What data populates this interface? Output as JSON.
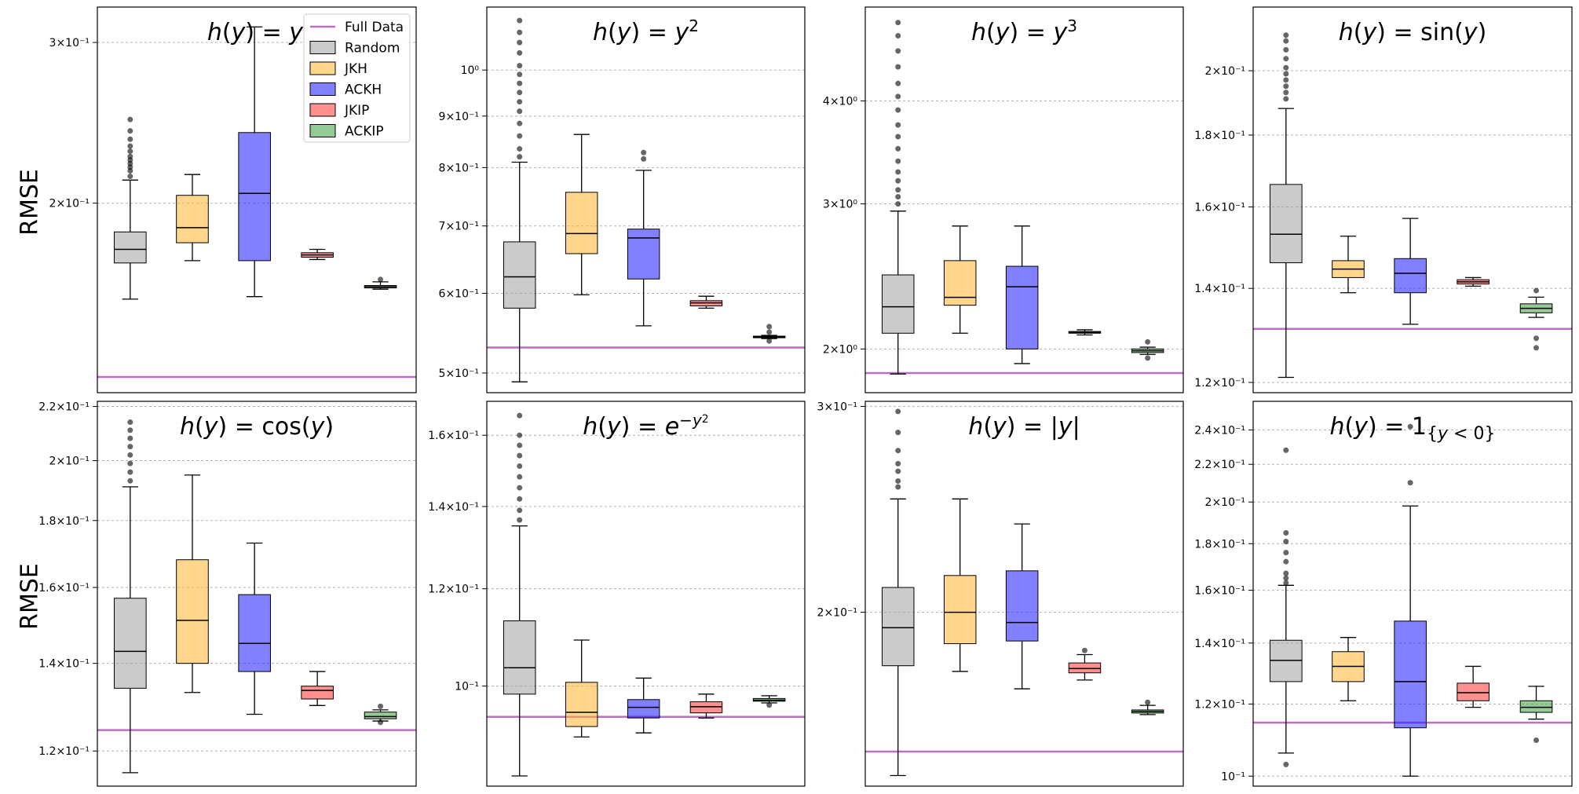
{
  "figure": {
    "row_ylabels": [
      "RMSE",
      "RMSE"
    ]
  },
  "legend": {
    "entries": [
      "Full Data",
      "Random",
      "JKH",
      "ACKH",
      "JKIP",
      "ACKIP"
    ]
  },
  "colors": {
    "Full Data": "#bf6ec8",
    "Random": "#a0a0a0",
    "JKH": "#ffb52e",
    "ACKH": "#1a1aff",
    "JKIP": "#ff3535",
    "ACKIP": "#3c9f3c"
  },
  "chart_data": [
    {
      "type": "box",
      "title": "h(y) = y",
      "title_parts": [
        {
          "t": "h",
          "i": true
        },
        {
          "t": "(",
          "i": false
        },
        {
          "t": "y",
          "i": true
        },
        {
          "t": ") = ",
          "i": false
        },
        {
          "t": "y",
          "i": true
        }
      ],
      "ylabel": "RMSE",
      "yscale": "log",
      "ylim": [
        0.124,
        0.328
      ],
      "yticks": [
        {
          "v": 0.2,
          "label": "2×10⁻¹"
        },
        {
          "v": 0.3,
          "label": "3×10⁻¹"
        }
      ],
      "full_data": 0.129,
      "legend": true,
      "categories": [
        "Random",
        "JKH",
        "ACKH",
        "JKIP",
        "ACKIP"
      ],
      "boxes": [
        {
          "name": "Random",
          "whislo": 0.157,
          "q1": 0.172,
          "med": 0.178,
          "q3": 0.186,
          "whishi": 0.212,
          "fliers": [
            0.214,
            0.217,
            0.219,
            0.221,
            0.223,
            0.225,
            0.228,
            0.231,
            0.235,
            0.24,
            0.247
          ]
        },
        {
          "name": "JKH",
          "whislo": 0.173,
          "q1": 0.181,
          "med": 0.188,
          "q3": 0.204,
          "whishi": 0.215,
          "fliers": []
        },
        {
          "name": "ACKH",
          "whislo": 0.158,
          "q1": 0.173,
          "med": 0.205,
          "q3": 0.239,
          "whishi": 0.312,
          "fliers": []
        },
        {
          "name": "JKIP",
          "whislo": 0.1735,
          "q1": 0.1745,
          "med": 0.1755,
          "q3": 0.1765,
          "whishi": 0.178,
          "fliers": []
        },
        {
          "name": "ACKIP",
          "whislo": 0.161,
          "q1": 0.1615,
          "med": 0.162,
          "q3": 0.1625,
          "whishi": 0.164,
          "fliers": [
            0.165
          ]
        }
      ]
    },
    {
      "type": "box",
      "title": "h(y) = y^2",
      "title_parts": [
        {
          "t": "h",
          "i": true
        },
        {
          "t": "(",
          "i": false
        },
        {
          "t": "y",
          "i": true
        },
        {
          "t": ") = ",
          "i": false
        },
        {
          "t": "y",
          "i": true
        },
        {
          "t": "2",
          "i": false,
          "sup": true
        }
      ],
      "yscale": "log",
      "ylim": [
        0.478,
        1.155
      ],
      "yticks": [
        {
          "v": 0.5,
          "label": "5×10⁻¹"
        },
        {
          "v": 0.6,
          "label": "6×10⁻¹"
        },
        {
          "v": 0.7,
          "label": "7×10⁻¹"
        },
        {
          "v": 0.8,
          "label": "8×10⁻¹"
        },
        {
          "v": 0.9,
          "label": "9×10⁻¹"
        },
        {
          "v": 1.0,
          "label": "10⁰"
        }
      ],
      "full_data": 0.53,
      "categories": [
        "Random",
        "JKH",
        "ACKH",
        "JKIP",
        "ACKIP"
      ],
      "boxes": [
        {
          "name": "Random",
          "whislo": 0.49,
          "q1": 0.58,
          "med": 0.623,
          "q3": 0.675,
          "whishi": 0.81,
          "fliers": [
            0.82,
            0.835,
            0.86,
            0.885,
            0.91,
            0.93,
            0.95,
            0.97,
            0.99,
            1.01,
            1.04,
            1.065,
            1.09,
            1.12
          ]
        },
        {
          "name": "JKH",
          "whislo": 0.598,
          "q1": 0.657,
          "med": 0.688,
          "q3": 0.756,
          "whishi": 0.863,
          "fliers": []
        },
        {
          "name": "ACKH",
          "whislo": 0.557,
          "q1": 0.62,
          "med": 0.681,
          "q3": 0.695,
          "whishi": 0.795,
          "fliers": [
            0.816,
            0.828
          ]
        },
        {
          "name": "JKIP",
          "whislo": 0.58,
          "q1": 0.583,
          "med": 0.587,
          "q3": 0.59,
          "whishi": 0.596,
          "fliers": []
        },
        {
          "name": "ACKIP",
          "whislo": 0.541,
          "q1": 0.542,
          "med": 0.543,
          "q3": 0.544,
          "whishi": 0.545,
          "fliers": [
            0.538,
            0.549,
            0.556
          ]
        }
      ]
    },
    {
      "type": "box",
      "title": "h(y) = y^3",
      "title_parts": [
        {
          "t": "h",
          "i": true
        },
        {
          "t": "(",
          "i": false
        },
        {
          "t": "y",
          "i": true
        },
        {
          "t": ") = ",
          "i": false
        },
        {
          "t": "y",
          "i": true
        },
        {
          "t": "3",
          "i": false,
          "sup": true
        }
      ],
      "yscale": "log",
      "ylim": [
        1.77,
        5.2
      ],
      "yticks": [
        {
          "v": 2.0,
          "label": "2×10⁰"
        },
        {
          "v": 3.0,
          "label": "3×10⁰"
        },
        {
          "v": 4.0,
          "label": "4×10⁰"
        }
      ],
      "full_data": 1.87,
      "categories": [
        "Random",
        "JKH",
        "ACKH",
        "JKIP",
        "ACKIP"
      ],
      "boxes": [
        {
          "name": "Random",
          "whislo": 1.865,
          "q1": 2.09,
          "med": 2.25,
          "q3": 2.46,
          "whishi": 2.94,
          "fliers": [
            3.0,
            3.06,
            3.12,
            3.2,
            3.28,
            3.38,
            3.5,
            3.62,
            3.74,
            3.9,
            4.05,
            4.2,
            4.4,
            4.6,
            4.8,
            4.98
          ]
        },
        {
          "name": "JKH",
          "whislo": 2.09,
          "q1": 2.26,
          "med": 2.31,
          "q3": 2.56,
          "whishi": 2.82,
          "fliers": []
        },
        {
          "name": "ACKH",
          "whislo": 1.92,
          "q1": 2.0,
          "med": 2.38,
          "q3": 2.52,
          "whishi": 2.82,
          "fliers": []
        },
        {
          "name": "JKIP",
          "whislo": 2.08,
          "q1": 2.09,
          "med": 2.095,
          "q3": 2.1,
          "whishi": 2.11,
          "fliers": []
        },
        {
          "name": "ACKIP",
          "whislo": 1.97,
          "q1": 1.98,
          "med": 1.99,
          "q3": 2.0,
          "whishi": 2.01,
          "fliers": [
            1.95,
            2.04
          ]
        }
      ]
    },
    {
      "type": "box",
      "title": "h(y) = sin(y)",
      "title_parts": [
        {
          "t": "h",
          "i": true
        },
        {
          "t": "(",
          "i": false
        },
        {
          "t": "y",
          "i": true
        },
        {
          "t": ") = sin(",
          "i": false
        },
        {
          "t": "y",
          "i": true
        },
        {
          "t": ")",
          "i": false
        }
      ],
      "yscale": "log",
      "ylim": [
        0.118,
        0.222
      ],
      "yticks": [
        {
          "v": 0.12,
          "label": "1.2×10⁻¹"
        },
        {
          "v": 0.14,
          "label": "1.4×10⁻¹"
        },
        {
          "v": 0.16,
          "label": "1.6×10⁻¹"
        },
        {
          "v": 0.18,
          "label": "1.8×10⁻¹"
        },
        {
          "v": 0.2,
          "label": "2×10⁻¹"
        }
      ],
      "full_data": 0.131,
      "categories": [
        "Random",
        "JKH",
        "ACKH",
        "JKIP",
        "ACKIP"
      ],
      "boxes": [
        {
          "name": "Random",
          "whislo": 0.121,
          "q1": 0.146,
          "med": 0.153,
          "q3": 0.166,
          "whishi": 0.188,
          "fliers": [
            0.191,
            0.193,
            0.195,
            0.197,
            0.199,
            0.201,
            0.204,
            0.207,
            0.21,
            0.212
          ]
        },
        {
          "name": "JKH",
          "whislo": 0.139,
          "q1": 0.1425,
          "med": 0.1445,
          "q3": 0.1465,
          "whishi": 0.1525,
          "fliers": []
        },
        {
          "name": "ACKH",
          "whislo": 0.132,
          "q1": 0.139,
          "med": 0.1435,
          "q3": 0.147,
          "whishi": 0.157,
          "fliers": []
        },
        {
          "name": "JKIP",
          "whislo": 0.1405,
          "q1": 0.141,
          "med": 0.1415,
          "q3": 0.142,
          "whishi": 0.1425,
          "fliers": []
        },
        {
          "name": "ACKIP",
          "whislo": 0.1335,
          "q1": 0.1345,
          "med": 0.1355,
          "q3": 0.1365,
          "whishi": 0.138,
          "fliers": [
            0.129,
            0.127,
            0.1395
          ]
        }
      ]
    },
    {
      "type": "box",
      "title": "h(y) = cos(y)",
      "title_parts": [
        {
          "t": "h",
          "i": true
        },
        {
          "t": "(",
          "i": false
        },
        {
          "t": "y",
          "i": true
        },
        {
          "t": ") = cos(",
          "i": false
        },
        {
          "t": "y",
          "i": true
        },
        {
          "t": ")",
          "i": false
        }
      ],
      "ylabel": "RMSE",
      "yscale": "log",
      "ylim": [
        0.1128,
        0.222
      ],
      "yticks": [
        {
          "v": 0.12,
          "label": "1.2×10⁻¹"
        },
        {
          "v": 0.14,
          "label": "1.4×10⁻¹"
        },
        {
          "v": 0.16,
          "label": "1.6×10⁻¹"
        },
        {
          "v": 0.18,
          "label": "1.8×10⁻¹"
        },
        {
          "v": 0.2,
          "label": "2×10⁻¹"
        },
        {
          "v": 0.22,
          "label": "2.2×10⁻¹"
        }
      ],
      "full_data": 0.1245,
      "categories": [
        "Random",
        "JKH",
        "ACKH",
        "JKIP",
        "ACKIP"
      ],
      "boxes": [
        {
          "name": "Random",
          "whislo": 0.1155,
          "q1": 0.134,
          "med": 0.143,
          "q3": 0.157,
          "whishi": 0.191,
          "fliers": [
            0.193,
            0.196,
            0.199,
            0.202,
            0.205,
            0.208,
            0.211,
            0.214
          ]
        },
        {
          "name": "JKH",
          "whislo": 0.133,
          "q1": 0.14,
          "med": 0.151,
          "q3": 0.168,
          "whishi": 0.195,
          "fliers": []
        },
        {
          "name": "ACKH",
          "whislo": 0.128,
          "q1": 0.138,
          "med": 0.145,
          "q3": 0.158,
          "whishi": 0.173,
          "fliers": []
        },
        {
          "name": "JKIP",
          "whislo": 0.13,
          "q1": 0.1315,
          "med": 0.1335,
          "q3": 0.1345,
          "whishi": 0.138,
          "fliers": []
        },
        {
          "name": "ACKIP",
          "whislo": 0.1265,
          "q1": 0.127,
          "med": 0.1275,
          "q3": 0.1285,
          "whishi": 0.129,
          "fliers": [
            0.1262,
            0.1298
          ]
        }
      ]
    },
    {
      "type": "box",
      "title": "h(y) = e^(-y^2)",
      "title_parts": [
        {
          "t": "h",
          "i": true
        },
        {
          "t": "(",
          "i": false
        },
        {
          "t": "y",
          "i": true
        },
        {
          "t": ") = ",
          "i": false
        },
        {
          "t": "e",
          "i": true
        },
        {
          "t": "−",
          "i": false,
          "sup": true
        },
        {
          "t": "y",
          "i": true,
          "sup": true
        },
        {
          "t": "2",
          "i": false,
          "supsup": true
        }
      ],
      "yscale": "log",
      "ylim": [
        0.0829,
        0.1705
      ],
      "yticks": [
        {
          "v": 0.1,
          "label": "10⁻¹"
        },
        {
          "v": 0.12,
          "label": "1.2×10⁻¹"
        },
        {
          "v": 0.14,
          "label": "1.4×10⁻¹"
        },
        {
          "v": 0.16,
          "label": "1.6×10⁻¹"
        }
      ],
      "full_data": 0.0944,
      "categories": [
        "Random",
        "JKH",
        "ACKH",
        "JKIP",
        "ACKIP"
      ],
      "boxes": [
        {
          "name": "Random",
          "whislo": 0.0845,
          "q1": 0.0985,
          "med": 0.1035,
          "q3": 0.113,
          "whishi": 0.135,
          "fliers": [
            0.1365,
            0.139,
            0.142,
            0.145,
            0.148,
            0.151,
            0.154,
            0.157,
            0.16,
            0.166
          ]
        },
        {
          "name": "JKH",
          "whislo": 0.0909,
          "q1": 0.0927,
          "med": 0.0952,
          "q3": 0.1007,
          "whishi": 0.109,
          "fliers": []
        },
        {
          "name": "ACKH",
          "whislo": 0.0916,
          "q1": 0.0942,
          "med": 0.0961,
          "q3": 0.0975,
          "whishi": 0.1015,
          "fliers": []
        },
        {
          "name": "JKIP",
          "whislo": 0.0942,
          "q1": 0.0951,
          "med": 0.0962,
          "q3": 0.0971,
          "whishi": 0.0985,
          "fliers": []
        },
        {
          "name": "ACKIP",
          "whislo": 0.0969,
          "q1": 0.0972,
          "med": 0.0974,
          "q3": 0.0977,
          "whishi": 0.0982,
          "fliers": [
            0.0965
          ]
        }
      ]
    },
    {
      "type": "box",
      "title": "h(y) = |y|",
      "title_parts": [
        {
          "t": "h",
          "i": true
        },
        {
          "t": "(",
          "i": false
        },
        {
          "t": "y",
          "i": true
        },
        {
          "t": ") = |",
          "i": false
        },
        {
          "t": "y",
          "i": true
        },
        {
          "t": "|",
          "i": false
        }
      ],
      "yscale": "log",
      "ylim": [
        0.142,
        0.303
      ],
      "yticks": [
        {
          "v": 0.2,
          "label": "2×10⁻¹"
        },
        {
          "v": 0.3,
          "label": "3×10⁻¹"
        }
      ],
      "full_data": 0.152,
      "categories": [
        "Random",
        "JKH",
        "ACKH",
        "JKIP",
        "ACKIP"
      ],
      "boxes": [
        {
          "name": "Random",
          "whislo": 0.145,
          "q1": 0.18,
          "med": 0.194,
          "q3": 0.21,
          "whishi": 0.25,
          "fliers": [
            0.256,
            0.259,
            0.264,
            0.268,
            0.275,
            0.285,
            0.297
          ]
        },
        {
          "name": "JKH",
          "whislo": 0.178,
          "q1": 0.188,
          "med": 0.2,
          "q3": 0.215,
          "whishi": 0.25,
          "fliers": []
        },
        {
          "name": "ACKH",
          "whislo": 0.172,
          "q1": 0.189,
          "med": 0.196,
          "q3": 0.217,
          "whishi": 0.238,
          "fliers": []
        },
        {
          "name": "JKIP",
          "whislo": 0.175,
          "q1": 0.1775,
          "med": 0.179,
          "q3": 0.181,
          "whishi": 0.184,
          "fliers": [
            0.1855
          ]
        },
        {
          "name": "ACKIP",
          "whislo": 0.1635,
          "q1": 0.164,
          "med": 0.1645,
          "q3": 0.165,
          "whishi": 0.1665,
          "fliers": [
            0.1675
          ]
        }
      ]
    },
    {
      "type": "box",
      "title": "h(y) = 1_{y<0}",
      "title_parts": [
        {
          "t": "h",
          "i": true
        },
        {
          "t": "(",
          "i": false
        },
        {
          "t": "y",
          "i": true
        },
        {
          "t": ") = 1",
          "i": false
        },
        {
          "t": "{",
          "i": false,
          "sub": true
        },
        {
          "t": "y",
          "i": true,
          "sub": true
        },
        {
          "t": " < 0}",
          "i": false,
          "sub": true
        }
      ],
      "yscale": "log",
      "ylim": [
        0.0975,
        0.258
      ],
      "yticks": [
        {
          "v": 0.1,
          "label": "10⁻¹"
        },
        {
          "v": 0.12,
          "label": "1.2×10⁻¹"
        },
        {
          "v": 0.14,
          "label": "1.4×10⁻¹"
        },
        {
          "v": 0.16,
          "label": "1.6×10⁻¹"
        },
        {
          "v": 0.18,
          "label": "1.8×10⁻¹"
        },
        {
          "v": 0.2,
          "label": "2×10⁻¹"
        },
        {
          "v": 0.22,
          "label": "2.2×10⁻¹"
        },
        {
          "v": 0.24,
          "label": "2.4×10⁻¹"
        }
      ],
      "full_data": 0.1145,
      "categories": [
        "Random",
        "JKH",
        "ACKH",
        "JKIP",
        "ACKIP"
      ],
      "boxes": [
        {
          "name": "Random",
          "whislo": 0.106,
          "q1": 0.127,
          "med": 0.134,
          "q3": 0.141,
          "whishi": 0.162,
          "fliers": [
            0.103,
            0.163,
            0.165,
            0.167,
            0.172,
            0.176,
            0.181,
            0.185,
            0.228
          ]
        },
        {
          "name": "JKH",
          "whislo": 0.121,
          "q1": 0.127,
          "med": 0.132,
          "q3": 0.137,
          "whishi": 0.142,
          "fliers": []
        },
        {
          "name": "ACKH",
          "whislo": 0.1,
          "q1": 0.113,
          "med": 0.127,
          "q3": 0.148,
          "whishi": 0.198,
          "fliers": [
            0.21,
            0.242
          ]
        },
        {
          "name": "JKIP",
          "whislo": 0.119,
          "q1": 0.121,
          "med": 0.1235,
          "q3": 0.1265,
          "whishi": 0.132,
          "fliers": []
        },
        {
          "name": "ACKIP",
          "whislo": 0.1155,
          "q1": 0.1175,
          "med": 0.119,
          "q3": 0.121,
          "whishi": 0.1255,
          "fliers": [
            0.1095
          ]
        }
      ]
    }
  ]
}
